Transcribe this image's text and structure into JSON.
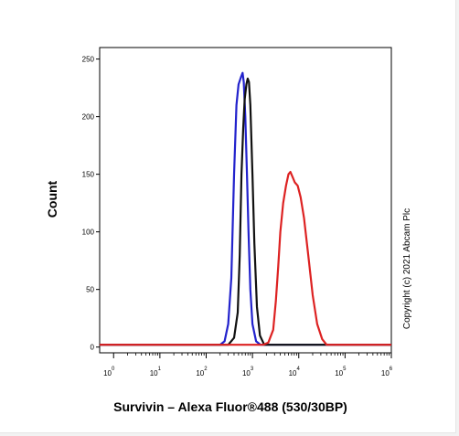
{
  "chart_data": {
    "type": "line",
    "xlabel": "Survivin – Alexa Fluor®488 (530/30BP)",
    "ylabel": "Count",
    "xscale": "log",
    "xlim": [
      0.5,
      1000000
    ],
    "ylim": [
      -5,
      260
    ],
    "y_ticks": [
      0,
      50,
      100,
      150,
      200,
      250
    ],
    "x_ticks": [
      {
        "value": 1,
        "base": "10",
        "exp": "0"
      },
      {
        "value": 10,
        "base": "10",
        "exp": "1"
      },
      {
        "value": 100,
        "base": "10",
        "exp": "2"
      },
      {
        "value": 1000,
        "base": "10",
        "exp": "3"
      },
      {
        "value": 10000,
        "base": "10",
        "exp": "4"
      },
      {
        "value": 100000,
        "base": "10",
        "exp": "5"
      },
      {
        "value": 1000000,
        "base": "10",
        "exp": "6"
      }
    ],
    "grid": false,
    "annotation": "Copyright (c) 2021 Abcam Plc",
    "series": [
      {
        "color": "#2222cc",
        "points": [
          [
            0.5,
            2
          ],
          [
            200,
            2
          ],
          [
            250,
            5
          ],
          [
            300,
            20
          ],
          [
            350,
            60
          ],
          [
            400,
            150
          ],
          [
            450,
            210
          ],
          [
            500,
            228
          ],
          [
            560,
            234
          ],
          [
            610,
            238
          ],
          [
            650,
            230
          ],
          [
            700,
            200
          ],
          [
            760,
            150
          ],
          [
            820,
            100
          ],
          [
            900,
            50
          ],
          [
            1000,
            20
          ],
          [
            1200,
            5
          ],
          [
            1500,
            2
          ],
          [
            1000000,
            2
          ]
        ]
      },
      {
        "color": "#111111",
        "points": [
          [
            0.5,
            2
          ],
          [
            300,
            2
          ],
          [
            400,
            8
          ],
          [
            480,
            30
          ],
          [
            530,
            80
          ],
          [
            580,
            150
          ],
          [
            630,
            190
          ],
          [
            680,
            215
          ],
          [
            740,
            228
          ],
          [
            790,
            233
          ],
          [
            840,
            230
          ],
          [
            900,
            210
          ],
          [
            1000,
            150
          ],
          [
            1100,
            90
          ],
          [
            1250,
            35
          ],
          [
            1450,
            10
          ],
          [
            1800,
            2
          ],
          [
            1000000,
            2
          ]
        ]
      },
      {
        "color": "#dd2222",
        "points": [
          [
            0.5,
            2
          ],
          [
            1700,
            2
          ],
          [
            2200,
            4
          ],
          [
            2800,
            15
          ],
          [
            3200,
            40
          ],
          [
            3600,
            70
          ],
          [
            4000,
            100
          ],
          [
            4600,
            125
          ],
          [
            5300,
            140
          ],
          [
            6000,
            150
          ],
          [
            6600,
            152
          ],
          [
            7300,
            148
          ],
          [
            8200,
            143
          ],
          [
            9500,
            140
          ],
          [
            11000,
            130
          ],
          [
            13000,
            112
          ],
          [
            16000,
            80
          ],
          [
            20000,
            45
          ],
          [
            25000,
            20
          ],
          [
            32000,
            7
          ],
          [
            40000,
            2
          ],
          [
            1000000,
            2
          ]
        ]
      }
    ]
  }
}
